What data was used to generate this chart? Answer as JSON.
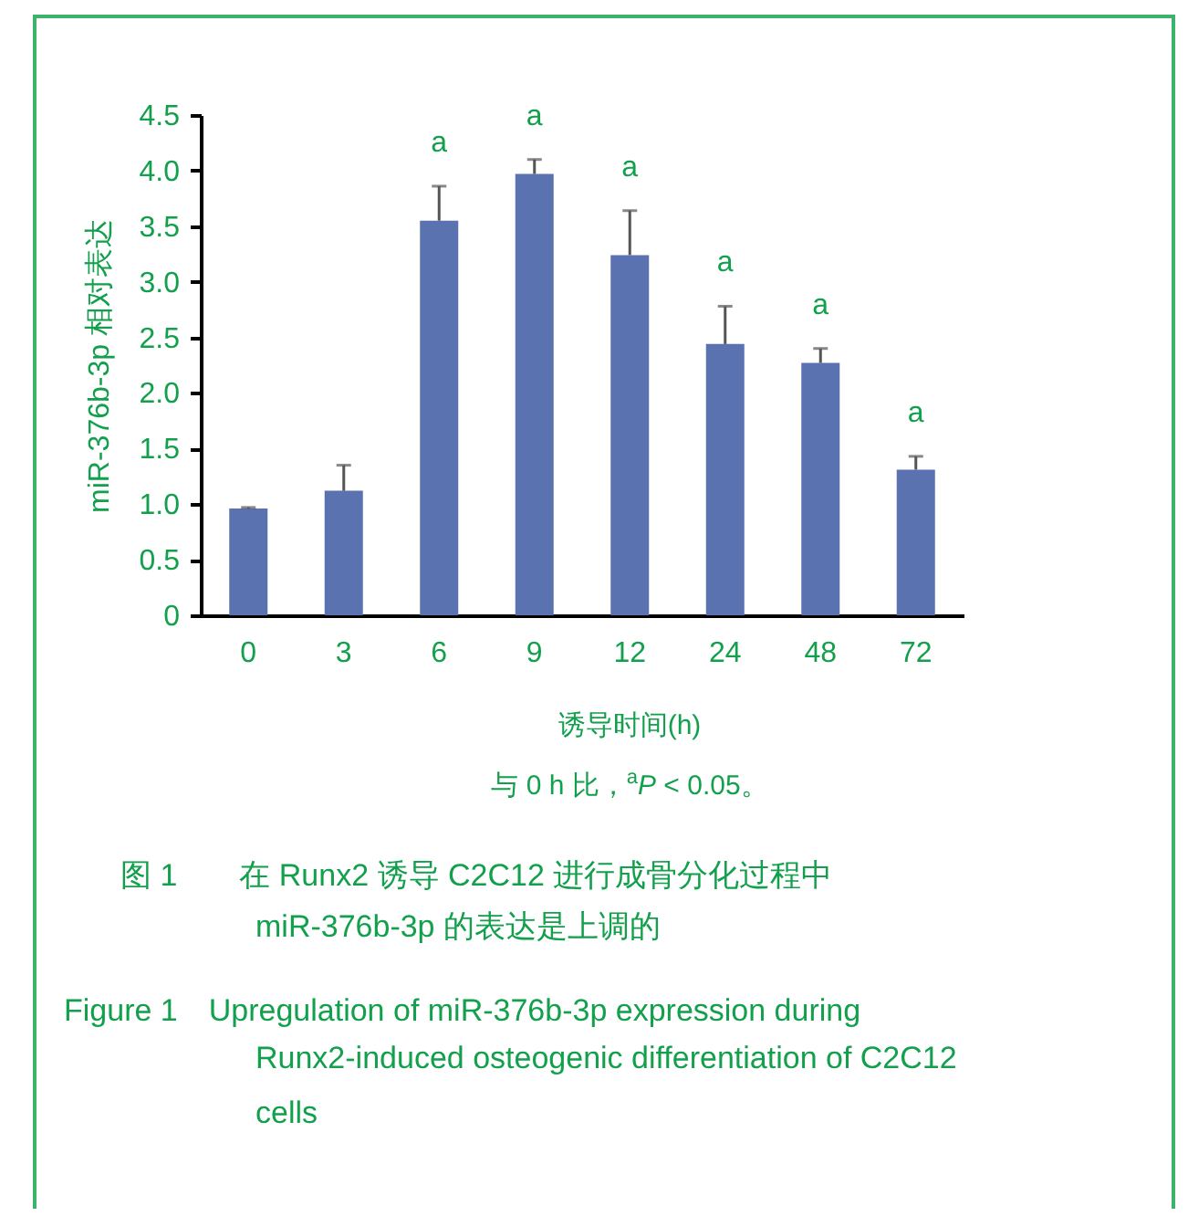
{
  "chart_data": {
    "type": "bar",
    "xlabel": "诱导时间(h)",
    "ylabel": "miR-376b-3p  相对表达",
    "categories": [
      "0",
      "3",
      "6",
      "9",
      "12",
      "24",
      "48",
      "72"
    ],
    "values": [
      0.96,
      1.12,
      3.55,
      3.97,
      3.24,
      2.44,
      2.27,
      1.31
    ],
    "errors": [
      [
        0.96,
        0.97
      ],
      [
        1.12,
        1.35
      ],
      [
        3.55,
        3.86
      ],
      [
        3.97,
        4.1
      ],
      [
        3.24,
        3.64
      ],
      [
        2.44,
        2.78
      ],
      [
        2.27,
        2.4
      ],
      [
        1.31,
        1.43
      ]
    ],
    "color": "#5b72b0",
    "ylim": [
      0,
      4.5
    ],
    "yticks": [
      0,
      0.5,
      {
        "value": 1,
        "label": "1.0"
      },
      1.5,
      {
        "value": 2,
        "label": "2.0"
      },
      2.5,
      {
        "value": 3,
        "label": "3.0"
      },
      3.5,
      {
        "value": 4,
        "label": "4.0"
      },
      4.5
    ],
    "grid": false,
    "annotations": [
      {
        "text": "a",
        "x": "6",
        "y": 3.86
      },
      {
        "text": "a",
        "x": "9",
        "y": 4.1
      },
      {
        "text": "a",
        "x": "12",
        "y": 3.64
      },
      {
        "text": "a",
        "x": "24",
        "y": 2.78
      },
      {
        "text": "a",
        "x": "48",
        "y": 2.4
      },
      {
        "text": "a",
        "x": "72",
        "y": 1.43
      },
      "与 0 h 比，$^{a}$P < 0.05。",
      "图 1　　在 Runx2 诱导 C2C12 进行成骨分化过程中",
      "miR-376b-3p 的表达是上调的",
      "Figure 1　Upregulation of miR-376b-3p expression during",
      "Runx2-induced osteogenic differentiation of C2C12",
      "cells"
    ]
  }
}
